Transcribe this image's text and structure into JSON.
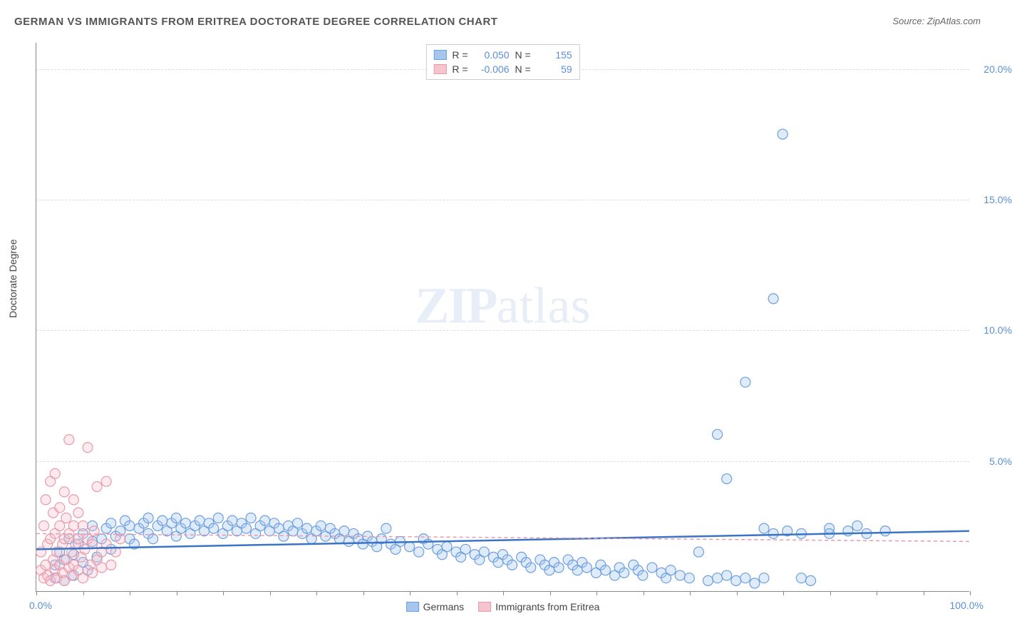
{
  "title": "GERMAN VS IMMIGRANTS FROM ERITREA DOCTORATE DEGREE CORRELATION CHART",
  "source": "Source: ZipAtlas.com",
  "y_axis_label": "Doctorate Degree",
  "watermark_zip": "ZIP",
  "watermark_atlas": "atlas",
  "chart": {
    "type": "scatter",
    "xlim": [
      0,
      100
    ],
    "ylim": [
      0,
      21
    ],
    "x_origin": "0.0%",
    "x_max": "100.0%",
    "y_ticks": [
      {
        "v": 5,
        "label": "5.0%"
      },
      {
        "v": 10,
        "label": "10.0%"
      },
      {
        "v": 15,
        "label": "15.0%"
      },
      {
        "v": 20,
        "label": "20.0%"
      }
    ],
    "x_tick_positions": [
      0,
      5,
      10,
      15,
      20,
      25,
      30,
      35,
      40,
      45,
      50,
      55,
      60,
      65,
      70,
      75,
      80,
      85,
      90,
      95,
      100
    ],
    "background_color": "#ffffff",
    "grid_color": "#dddddd",
    "marker_radius": 7,
    "marker_fill_opacity": 0.35,
    "marker_stroke_width": 1.2,
    "series": [
      {
        "name": "Germans",
        "color_fill": "#a7c6ed",
        "color_stroke": "#6b9fe0",
        "trend": {
          "y_at_x0": 1.6,
          "y_at_x100": 2.3,
          "color": "#3b74c4",
          "width": 2.5,
          "dash": "none"
        },
        "r_label": "R =",
        "r_value": "0.050",
        "n_label": "N =",
        "n_value": "155",
        "points": [
          [
            2,
            0.5
          ],
          [
            2,
            1.0
          ],
          [
            2.5,
            1.5
          ],
          [
            3,
            0.4
          ],
          [
            3,
            1.2
          ],
          [
            3.5,
            2.0
          ],
          [
            4,
            0.6
          ],
          [
            4,
            1.4
          ],
          [
            4.5,
            1.8
          ],
          [
            5,
            1.1
          ],
          [
            5,
            2.2
          ],
          [
            5.5,
            0.8
          ],
          [
            6,
            1.9
          ],
          [
            6,
            2.5
          ],
          [
            6.5,
            1.3
          ],
          [
            7,
            2.0
          ],
          [
            7.5,
            2.4
          ],
          [
            8,
            1.6
          ],
          [
            8,
            2.6
          ],
          [
            8.5,
            2.1
          ],
          [
            9,
            2.3
          ],
          [
            9.5,
            2.7
          ],
          [
            10,
            2.0
          ],
          [
            10,
            2.5
          ],
          [
            10.5,
            1.8
          ],
          [
            11,
            2.4
          ],
          [
            11.5,
            2.6
          ],
          [
            12,
            2.2
          ],
          [
            12,
            2.8
          ],
          [
            12.5,
            2.0
          ],
          [
            13,
            2.5
          ],
          [
            13.5,
            2.7
          ],
          [
            14,
            2.3
          ],
          [
            14.5,
            2.6
          ],
          [
            15,
            2.1
          ],
          [
            15,
            2.8
          ],
          [
            15.5,
            2.4
          ],
          [
            16,
            2.6
          ],
          [
            16.5,
            2.2
          ],
          [
            17,
            2.5
          ],
          [
            17.5,
            2.7
          ],
          [
            18,
            2.3
          ],
          [
            18.5,
            2.6
          ],
          [
            19,
            2.4
          ],
          [
            19.5,
            2.8
          ],
          [
            20,
            2.2
          ],
          [
            20.5,
            2.5
          ],
          [
            21,
            2.7
          ],
          [
            21.5,
            2.3
          ],
          [
            22,
            2.6
          ],
          [
            22.5,
            2.4
          ],
          [
            23,
            2.8
          ],
          [
            23.5,
            2.2
          ],
          [
            24,
            2.5
          ],
          [
            24.5,
            2.7
          ],
          [
            25,
            2.3
          ],
          [
            25.5,
            2.6
          ],
          [
            26,
            2.4
          ],
          [
            26.5,
            2.1
          ],
          [
            27,
            2.5
          ],
          [
            27.5,
            2.3
          ],
          [
            28,
            2.6
          ],
          [
            28.5,
            2.2
          ],
          [
            29,
            2.4
          ],
          [
            29.5,
            2.0
          ],
          [
            30,
            2.3
          ],
          [
            30.5,
            2.5
          ],
          [
            31,
            2.1
          ],
          [
            31.5,
            2.4
          ],
          [
            32,
            2.2
          ],
          [
            32.5,
            2.0
          ],
          [
            33,
            2.3
          ],
          [
            33.5,
            1.9
          ],
          [
            34,
            2.2
          ],
          [
            34.5,
            2.0
          ],
          [
            35,
            1.8
          ],
          [
            35.5,
            2.1
          ],
          [
            36,
            1.9
          ],
          [
            36.5,
            1.7
          ],
          [
            37,
            2.0
          ],
          [
            37.5,
            2.4
          ],
          [
            38,
            1.8
          ],
          [
            38.5,
            1.6
          ],
          [
            39,
            1.9
          ],
          [
            40,
            1.7
          ],
          [
            41,
            1.5
          ],
          [
            41.5,
            2.0
          ],
          [
            42,
            1.8
          ],
          [
            43,
            1.6
          ],
          [
            43.5,
            1.4
          ],
          [
            44,
            1.7
          ],
          [
            45,
            1.5
          ],
          [
            45.5,
            1.3
          ],
          [
            46,
            1.6
          ],
          [
            47,
            1.4
          ],
          [
            47.5,
            1.2
          ],
          [
            48,
            1.5
          ],
          [
            49,
            1.3
          ],
          [
            49.5,
            1.1
          ],
          [
            50,
            1.4
          ],
          [
            50.5,
            1.2
          ],
          [
            51,
            1.0
          ],
          [
            52,
            1.3
          ],
          [
            52.5,
            1.1
          ],
          [
            53,
            0.9
          ],
          [
            54,
            1.2
          ],
          [
            54.5,
            1.0
          ],
          [
            55,
            0.8
          ],
          [
            55.5,
            1.1
          ],
          [
            56,
            0.9
          ],
          [
            57,
            1.2
          ],
          [
            57.5,
            1.0
          ],
          [
            58,
            0.8
          ],
          [
            58.5,
            1.1
          ],
          [
            59,
            0.9
          ],
          [
            60,
            0.7
          ],
          [
            60.5,
            1.0
          ],
          [
            61,
            0.8
          ],
          [
            62,
            0.6
          ],
          [
            62.5,
            0.9
          ],
          [
            63,
            0.7
          ],
          [
            64,
            1.0
          ],
          [
            64.5,
            0.8
          ],
          [
            65,
            0.6
          ],
          [
            66,
            0.9
          ],
          [
            67,
            0.7
          ],
          [
            67.5,
            0.5
          ],
          [
            68,
            0.8
          ],
          [
            69,
            0.6
          ],
          [
            70,
            0.5
          ],
          [
            71,
            1.5
          ],
          [
            72,
            0.4
          ],
          [
            73,
            0.5
          ],
          [
            73,
            6.0
          ],
          [
            74,
            0.6
          ],
          [
            74,
            4.3
          ],
          [
            75,
            0.4
          ],
          [
            76,
            0.5
          ],
          [
            76,
            8.0
          ],
          [
            77,
            0.3
          ],
          [
            78,
            2.4
          ],
          [
            78,
            0.5
          ],
          [
            79,
            11.2
          ],
          [
            79,
            2.2
          ],
          [
            80,
            17.5
          ],
          [
            80.5,
            2.3
          ],
          [
            82,
            2.2
          ],
          [
            82,
            0.5
          ],
          [
            83,
            0.4
          ],
          [
            85,
            2.4
          ],
          [
            85,
            2.2
          ],
          [
            87,
            2.3
          ],
          [
            88,
            2.5
          ],
          [
            89,
            2.2
          ],
          [
            91,
            2.3
          ]
        ]
      },
      {
        "name": "Immigrants from Eritrea",
        "color_fill": "#f5c4ce",
        "color_stroke": "#e89aaa",
        "trend": {
          "y_at_x0": 2.2,
          "y_at_x100": 1.9,
          "color": "#e89aaa",
          "width": 1.5,
          "dash": "5,4"
        },
        "r_label": "R =",
        "r_value": "-0.006",
        "n_label": "N =",
        "n_value": "59",
        "points": [
          [
            0.5,
            0.8
          ],
          [
            0.5,
            1.5
          ],
          [
            0.8,
            0.5
          ],
          [
            0.8,
            2.5
          ],
          [
            1.0,
            3.5
          ],
          [
            1.0,
            1.0
          ],
          [
            1.2,
            0.6
          ],
          [
            1.2,
            1.8
          ],
          [
            1.5,
            4.2
          ],
          [
            1.5,
            0.4
          ],
          [
            1.5,
            2.0
          ],
          [
            1.8,
            1.2
          ],
          [
            1.8,
            3.0
          ],
          [
            2.0,
            0.8
          ],
          [
            2.0,
            2.2
          ],
          [
            2.0,
            4.5
          ],
          [
            2.2,
            1.5
          ],
          [
            2.2,
            0.5
          ],
          [
            2.5,
            3.2
          ],
          [
            2.5,
            1.0
          ],
          [
            2.5,
            2.5
          ],
          [
            2.8,
            0.7
          ],
          [
            2.8,
            1.8
          ],
          [
            3.0,
            3.8
          ],
          [
            3.0,
            2.0
          ],
          [
            3.0,
            0.4
          ],
          [
            3.2,
            1.2
          ],
          [
            3.2,
            2.8
          ],
          [
            3.5,
            0.9
          ],
          [
            3.5,
            2.2
          ],
          [
            3.5,
            5.8
          ],
          [
            3.8,
            1.5
          ],
          [
            3.8,
            0.6
          ],
          [
            4.0,
            2.5
          ],
          [
            4.0,
            3.5
          ],
          [
            4.0,
            1.0
          ],
          [
            4.2,
            1.8
          ],
          [
            4.5,
            0.8
          ],
          [
            4.5,
            2.0
          ],
          [
            4.5,
            3.0
          ],
          [
            4.8,
            1.3
          ],
          [
            5.0,
            2.5
          ],
          [
            5.0,
            0.5
          ],
          [
            5.2,
            1.6
          ],
          [
            5.5,
            5.5
          ],
          [
            5.5,
            2.0
          ],
          [
            5.8,
            1.0
          ],
          [
            6.0,
            1.8
          ],
          [
            6.0,
            0.7
          ],
          [
            6.2,
            2.3
          ],
          [
            6.5,
            1.2
          ],
          [
            6.5,
            4.0
          ],
          [
            7.0,
            1.5
          ],
          [
            7.0,
            0.9
          ],
          [
            7.5,
            4.2
          ],
          [
            7.5,
            1.8
          ],
          [
            8.0,
            1.0
          ],
          [
            8.5,
            1.5
          ],
          [
            9.0,
            2.0
          ]
        ]
      }
    ]
  },
  "legend_bottom": [
    {
      "label": "Germans",
      "fill": "#a7c6ed",
      "stroke": "#6b9fe0"
    },
    {
      "label": "Immigrants from Eritrea",
      "fill": "#f5c4ce",
      "stroke": "#e89aaa"
    }
  ]
}
